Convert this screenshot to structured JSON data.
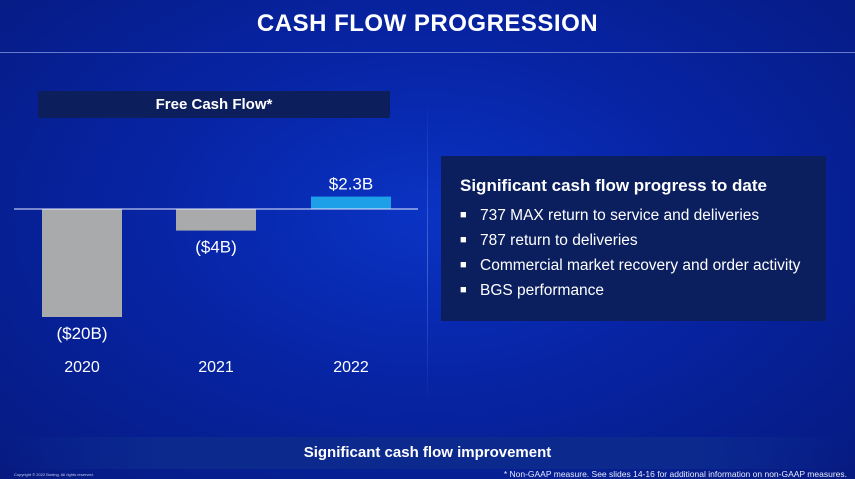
{
  "slide": {
    "title": "CASH FLOW PROGRESSION",
    "banner": "Significant cash flow improvement",
    "footnote": "* Non-GAAP measure. See slides 14-16 for additional information on non-GAAP measures.",
    "copyright": "Copyright © 2022 Boeing. All rights reserved."
  },
  "info_box": {
    "heading": "Significant cash flow progress to date",
    "bullets": [
      "737 MAX return to service and deliveries",
      "787 return to deliveries",
      "Commercial market recovery and order activity",
      "BGS performance"
    ]
  },
  "chart_data": {
    "type": "bar",
    "title": "Free Cash Flow*",
    "categories": [
      "2020",
      "2021",
      "2022"
    ],
    "values": [
      -20,
      -4,
      2.3
    ],
    "data_labels": [
      "($20B)",
      "($4B)",
      "$2.3B"
    ],
    "unit": "B",
    "colors": [
      "#a9aaab",
      "#a9aaab",
      "#1ea0e8"
    ],
    "ylim": [
      -20,
      2.3
    ],
    "grid": false,
    "legend": "none"
  }
}
